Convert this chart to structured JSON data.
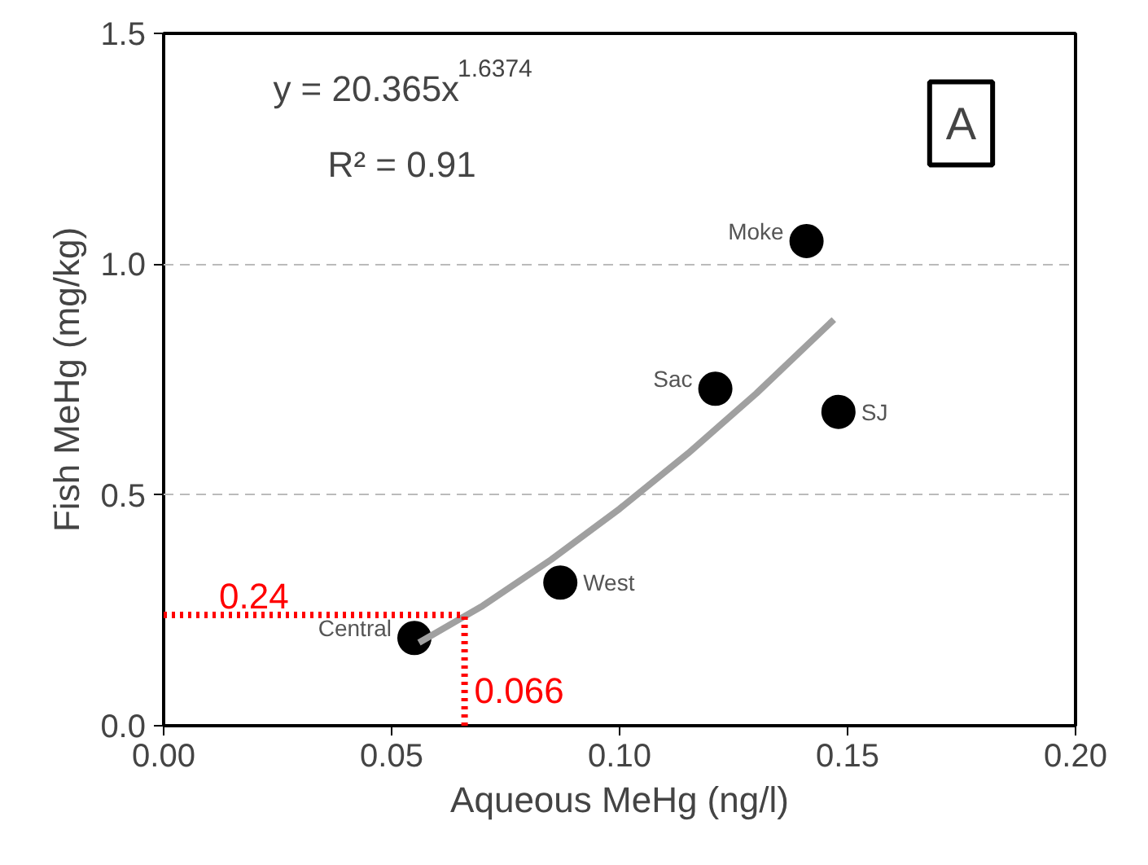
{
  "chart_data": {
    "type": "scatter",
    "xlabel": "Aqueous MeHg (ng/l)",
    "ylabel": "Fish MeHg (mg/kg)",
    "xlim": [
      0,
      0.2
    ],
    "ylim": [
      0,
      1.5
    ],
    "xticks": [
      {
        "value": 0,
        "label": "0.00"
      },
      {
        "value": 0.05,
        "label": "0.05"
      },
      {
        "value": 0.1,
        "label": "0.10"
      },
      {
        "value": 0.15,
        "label": "0.15"
      },
      {
        "value": 0.2,
        "label": "0.20"
      }
    ],
    "yticks": [
      {
        "value": 0,
        "label": "0.0"
      },
      {
        "value": 0.5,
        "label": "0.5"
      },
      {
        "value": 1.0,
        "label": "1.0"
      },
      {
        "value": 1.5,
        "label": "1.5"
      }
    ],
    "grid": "y",
    "marker": "circle",
    "series": [
      {
        "color": "#000000",
        "x": [
          0.055,
          0.087,
          0.121,
          0.148,
          0.141
        ],
        "values": [
          0.19,
          0.31,
          0.73,
          0.68,
          1.05
        ]
      },
      {
        "type": "line",
        "color": "#a0a0a0",
        "marker": "none",
        "x": [
          0.056,
          0.07,
          0.085,
          0.1,
          0.115,
          0.13,
          0.147
        ],
        "values": [
          0.18,
          0.26,
          0.36,
          0.47,
          0.59,
          0.72,
          0.88
        ]
      }
    ],
    "ref_lines": [
      {
        "axis": "y",
        "value": 0.24,
        "label": "0.24",
        "color": "#ff0000",
        "line_style": "dotted"
      },
      {
        "axis": "x",
        "value": 0.066,
        "label": "0.066",
        "color": "#ff0000",
        "line_style": "dotted"
      }
    ],
    "annotations": [
      "y = 20.365x$^{1.6374}$",
      "R² = 0.91",
      "A",
      {
        "text": "Central",
        "x": 0.055,
        "y": 0.19
      },
      {
        "text": "West",
        "x": 0.087,
        "y": 0.31
      },
      {
        "text": "Sac",
        "x": 0.121,
        "y": 0.73
      },
      {
        "text": "SJ",
        "x": 0.148,
        "y": 0.68
      },
      {
        "text": "Moke",
        "x": 0.141,
        "y": 1.05
      }
    ]
  }
}
